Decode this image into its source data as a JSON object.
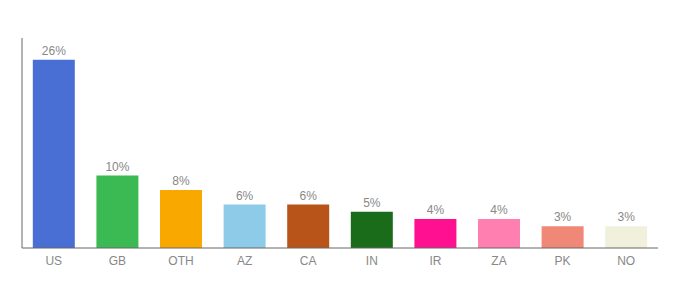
{
  "chart_data": {
    "type": "bar",
    "categories": [
      "US",
      "GB",
      "OTH",
      "AZ",
      "CA",
      "IN",
      "IR",
      "ZA",
      "PK",
      "NO"
    ],
    "values": [
      26,
      10,
      8,
      6,
      6,
      5,
      4,
      4,
      3,
      3
    ],
    "value_labels": [
      "26%",
      "10%",
      "8%",
      "6%",
      "6%",
      "5%",
      "4%",
      "4%",
      "3%",
      "3%"
    ],
    "data_labels": true,
    "colors": [
      "#4a6fd4",
      "#3bba54",
      "#f9a800",
      "#8ecbe8",
      "#b8541a",
      "#1a6b1a",
      "#ff1090",
      "#ff80b0",
      "#f08878",
      "#f0f0dc"
    ],
    "ylim": [
      0,
      29
    ],
    "tick_labels": "x",
    "grid": false
  }
}
